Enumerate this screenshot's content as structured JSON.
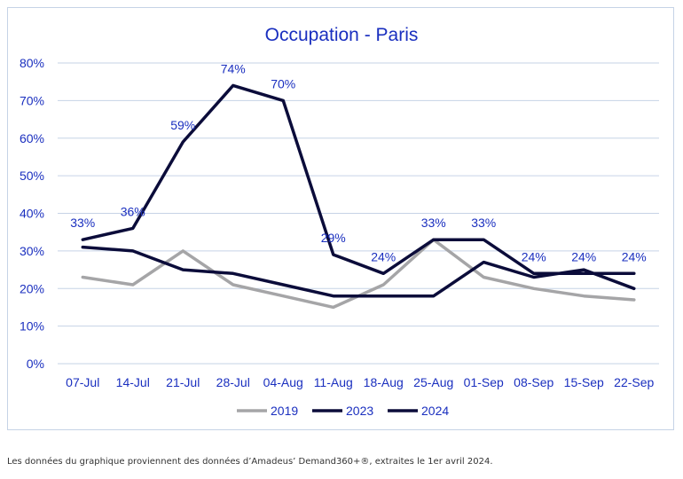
{
  "chart_data": {
    "type": "line",
    "title": "Occupation - Paris",
    "categories": [
      "07-Jul",
      "14-Jul",
      "21-Jul",
      "28-Jul",
      "04-Aug",
      "11-Aug",
      "18-Aug",
      "25-Aug",
      "01-Sep",
      "08-Sep",
      "15-Sep",
      "22-Sep"
    ],
    "ylim": [
      0,
      80
    ],
    "yticks": [
      "0%",
      "10%",
      "20%",
      "30%",
      "40%",
      "50%",
      "60%",
      "70%",
      "80%"
    ],
    "grid": true,
    "legend_position": "bottom",
    "series": [
      {
        "name": "2019",
        "color": "#a5a5a7",
        "values": [
          23,
          21,
          30,
          21,
          18,
          15,
          21,
          33,
          23,
          20,
          18,
          17
        ]
      },
      {
        "name": "2023",
        "color": "#0b0c3a",
        "values": [
          31,
          30,
          25,
          24,
          21,
          18,
          18,
          18,
          27,
          23,
          25,
          20
        ]
      },
      {
        "name": "2024",
        "color": "#0b0c3a",
        "values": [
          33,
          36,
          59,
          74,
          70,
          29,
          24,
          33,
          33,
          24,
          24,
          24
        ]
      }
    ],
    "data_labels": [
      "33%",
      "36%",
      "59%",
      "74%",
      "70%",
      "29%",
      "24%",
      "33%",
      "33%",
      "24%",
      "24%",
      "24%"
    ]
  },
  "footer": {
    "source": "Les données du graphique proviennent des données d’Amadeus’ Demand360+®, extraites le 1er avril 2024."
  }
}
